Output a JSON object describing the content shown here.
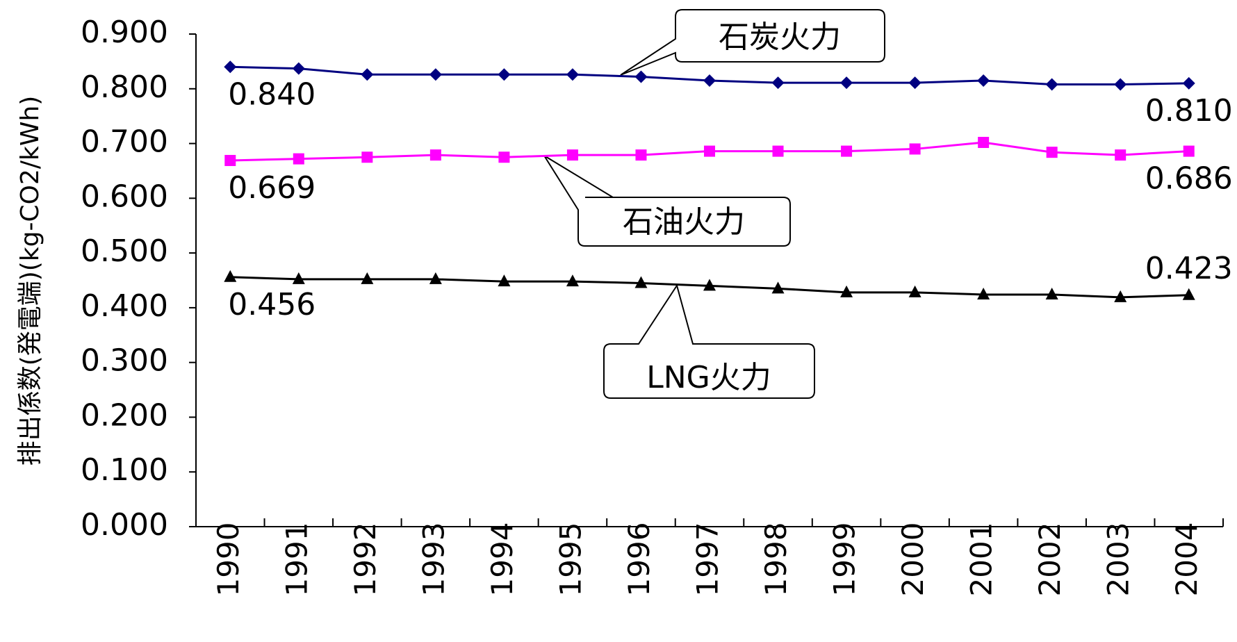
{
  "chart_data": {
    "type": "line",
    "y_label": "排出係数(発電端)(kg-CO2/kWh)",
    "categories": [
      "1990",
      "1991",
      "1992",
      "1993",
      "1994",
      "1995",
      "1996",
      "1997",
      "1998",
      "1999",
      "2000",
      "2001",
      "2002",
      "2003",
      "2004"
    ],
    "ylim": [
      0,
      0.9
    ],
    "yticks": [
      {
        "value": 0,
        "label": "0.000"
      },
      {
        "value": 0.1,
        "label": "0.100"
      },
      {
        "value": 0.2,
        "label": "0.200"
      },
      {
        "value": 0.3,
        "label": "0.300"
      },
      {
        "value": 0.4,
        "label": "0.400"
      },
      {
        "value": 0.5,
        "label": "0.500"
      },
      {
        "value": 0.6,
        "label": "0.600"
      },
      {
        "value": 0.7,
        "label": "0.700"
      },
      {
        "value": 0.8,
        "label": "0.800"
      },
      {
        "value": 0.9,
        "label": "0.900"
      }
    ],
    "grid": false,
    "series": [
      {
        "name": "石炭火力",
        "color": "#000080",
        "marker": "diamond",
        "values": [
          0.84,
          0.837,
          0.826,
          0.826,
          0.826,
          0.826,
          0.822,
          0.815,
          0.811,
          0.811,
          0.811,
          0.815,
          0.808,
          0.808,
          0.81
        ],
        "value_labels": [
          "0.840",
          null,
          null,
          null,
          null,
          null,
          null,
          null,
          null,
          null,
          null,
          null,
          null,
          null,
          "0.810"
        ]
      },
      {
        "name": "石油火力",
        "color": "#ff00ff",
        "marker": "square",
        "values": [
          0.669,
          0.672,
          0.675,
          0.679,
          0.675,
          0.679,
          0.679,
          0.686,
          0.686,
          0.686,
          0.69,
          0.702,
          0.684,
          0.679,
          0.686
        ],
        "value_labels": [
          "0.669",
          null,
          null,
          null,
          null,
          null,
          null,
          null,
          null,
          null,
          null,
          null,
          null,
          null,
          "0.686"
        ]
      },
      {
        "name": "LNG火力",
        "color": "#000000",
        "marker": "triangle",
        "values": [
          0.456,
          0.452,
          0.452,
          0.452,
          0.448,
          0.448,
          0.445,
          0.44,
          0.435,
          0.428,
          0.428,
          0.424,
          0.424,
          0.419,
          0.423
        ],
        "value_labels": [
          "0.456",
          null,
          null,
          null,
          null,
          null,
          null,
          null,
          null,
          null,
          null,
          null,
          null,
          null,
          "0.423"
        ]
      }
    ]
  }
}
